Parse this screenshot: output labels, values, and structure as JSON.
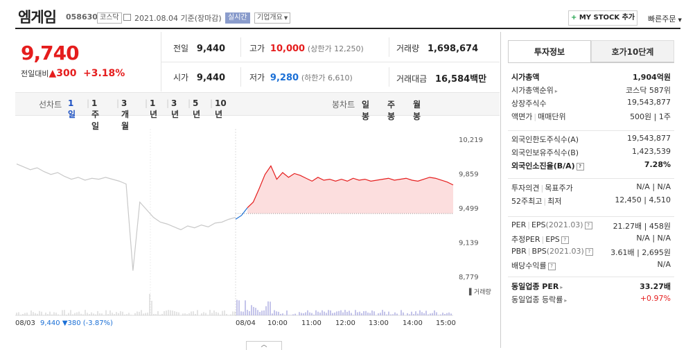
{
  "header": {
    "stock_name": "엠게임",
    "stock_code": "058630",
    "market_tag": "코스닥",
    "date_text": "2021.08.04  기준(장마감)",
    "realtime_tag": "실시간",
    "company_overview": "기업개요",
    "mystock_plus": "+",
    "mystock_label": " MY STOCK 추가",
    "quick_order": "빠른주문"
  },
  "quote": {
    "price": "9,740",
    "change_label": "전일대비",
    "change_arrow": "▲",
    "change_value": "300",
    "change_rate": "+3.18%",
    "prev_close_label": "전일",
    "prev_close": "9,440",
    "high_label": "고가",
    "high": "10,000",
    "upper_limit": "(상한가 12,250)",
    "volume_label": "거래량",
    "volume": "1,698,674",
    "open_label": "시가",
    "open": "9,440",
    "low_label": "저가",
    "low": "9,280",
    "lower_limit": "(하한가 6,610)",
    "amount_label": "거래대금",
    "amount": "16,584",
    "amount_unit": "백만"
  },
  "period_bar": {
    "line_label": "선차트",
    "line_items": [
      "1일",
      "1주일",
      "3개월",
      "1년",
      "3년",
      "5년",
      "10년"
    ],
    "active_index": 0,
    "candle_label": "봉차트",
    "candle_items": [
      "일봉",
      "주봉",
      "월봉"
    ]
  },
  "chart_data": {
    "type": "line",
    "y_ticks": [
      "10,219",
      "9,859",
      "9,499",
      "9,139",
      "8,779"
    ],
    "ylim": [
      8779,
      10219
    ],
    "x_ticks": [
      "08/03",
      "08/04",
      "10:00",
      "11:00",
      "12:00",
      "13:00",
      "14:00",
      "15:00"
    ],
    "volume_label": "거래량",
    "prev_day_summary": "08/03 ",
    "prev_day_price": "9,440",
    "prev_day_change": " ▼380 (-3.87%)",
    "reference_price": 9440,
    "prev_day_series": [
      9960,
      9930,
      9900,
      9920,
      9880,
      9850,
      9870,
      9830,
      9800,
      9820,
      9790,
      9810,
      9800,
      9820,
      9800,
      9780,
      9750,
      8840,
      9560,
      9480,
      9400,
      9350,
      9330,
      9300,
      9270,
      9310,
      9290,
      9320,
      9300,
      9340,
      9350,
      9380,
      9400
    ],
    "today_series": [
      9380,
      9420,
      9500,
      9560,
      9700,
      9850,
      9940,
      9800,
      9870,
      9820,
      9860,
      9840,
      9810,
      9780,
      9820,
      9790,
      9800,
      9780,
      9800,
      9780,
      9810,
      9790,
      9800,
      9780,
      9790,
      9800,
      9810,
      9790,
      9800,
      9810,
      9790,
      9780,
      9800,
      9820,
      9810,
      9790,
      9770,
      9740
    ],
    "colors": {
      "up_line": "#e51d1d",
      "down_line": "#1a6fd6",
      "prev_line": "#c8c8c8",
      "fill": "#fcdede"
    }
  },
  "invest_panel": {
    "tab_info": "투자정보",
    "tab_hoga": "호가10단계",
    "group1": [
      {
        "k": "시가총액",
        "v": "1,904억원",
        "bold": true
      },
      {
        "k": "시가총액순위",
        "v": "코스닥 587위",
        "arrow": true
      },
      {
        "k": "상장주식수",
        "v": "19,543,877"
      },
      {
        "k": "액면가",
        "k2": "매매단위",
        "v": "500원",
        "v2": "1주"
      }
    ],
    "group2": [
      {
        "k": "외국인한도주식수(A)",
        "v": "19,543,877"
      },
      {
        "k": "외국인보유주식수(B)",
        "v": "1,423,539"
      },
      {
        "k": "외국인소진율(B/A)",
        "v": "7.28%",
        "bold": true,
        "q": true
      }
    ],
    "group3": [
      {
        "k": "투자의견",
        "k2": "목표주가",
        "v": "N/A",
        "v2": "N/A"
      },
      {
        "k": "52주최고",
        "k2": "최저",
        "v": "12,450",
        "v2": "4,510"
      }
    ],
    "group4": [
      {
        "k": "PER",
        "k2": "EPS",
        "k2sub": "(2021.03)",
        "q": true,
        "v": "21.27배",
        "v2": "458원"
      },
      {
        "k": "추정PER",
        "k2": "EPS",
        "q": true,
        "v": "N/A",
        "v2": "N/A"
      },
      {
        "k": "PBR",
        "k2": "BPS",
        "k2sub": "(2021.03)",
        "q": true,
        "v": "3.61배",
        "v2": "2,695원"
      },
      {
        "k": "배당수익률",
        "q": true,
        "v": "N/A"
      }
    ],
    "group5": [
      {
        "k": "동일업종 PER",
        "v": "33.27배",
        "bold": true,
        "arrow": true
      },
      {
        "k": "동일업종 등락률",
        "v": "+0.97%",
        "arrow": true,
        "red": true
      }
    ]
  },
  "bottom_toggle": "︿"
}
